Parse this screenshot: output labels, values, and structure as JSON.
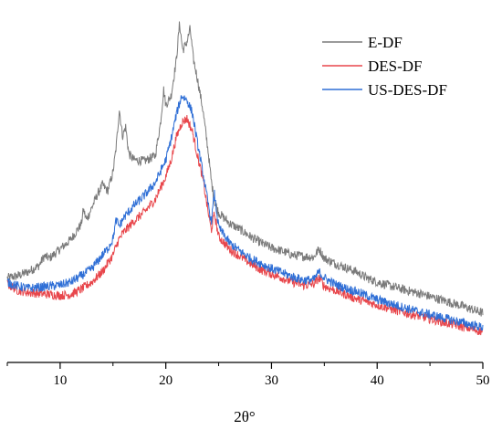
{
  "chart_data": {
    "type": "line",
    "title": "",
    "xlabel": "2θ°",
    "ylabel": "",
    "xlim": [
      5,
      50
    ],
    "x_ticks": [
      10,
      20,
      30,
      40,
      50
    ],
    "x_tick_labels": [
      "10",
      "20",
      "30",
      "40",
      "50"
    ],
    "y_axis_visible": false,
    "grid": false,
    "legend_position": "top-right",
    "series": [
      {
        "name": "E-DF",
        "color": "#7a7a7a",
        "x": [
          5,
          6,
          7,
          8,
          8.5,
          9,
          10,
          11,
          12,
          12.2,
          12.5,
          13,
          13.5,
          14,
          14.5,
          15,
          15.3,
          15.6,
          15.9,
          16.2,
          16.5,
          17,
          18,
          19,
          19.5,
          19.8,
          20,
          20.5,
          21,
          21.3,
          21.6,
          22,
          22.3,
          22.6,
          23,
          23.5,
          24,
          24.3,
          24.6,
          25,
          26,
          27,
          28,
          29,
          30,
          31,
          32,
          33,
          34,
          34.5,
          35,
          36,
          37,
          38,
          39,
          40,
          42,
          44,
          46,
          48,
          50
        ],
        "y": [
          4.2,
          4.4,
          4.8,
          5.4,
          6.3,
          6.1,
          7.0,
          7.9,
          9.4,
          10.8,
          9.8,
          11.0,
          12.2,
          13.2,
          12.6,
          14.4,
          16.8,
          20.5,
          17.9,
          18.8,
          16.2,
          15.6,
          15.5,
          16.0,
          19.2,
          22.4,
          20.9,
          21.8,
          25.3,
          28.8,
          26.2,
          27.0,
          28.3,
          25.4,
          23.4,
          20.5,
          16.5,
          13.6,
          11.6,
          10.5,
          9.5,
          8.9,
          8.2,
          7.6,
          7.1,
          6.8,
          6.4,
          6.3,
          6.2,
          7.0,
          6.1,
          5.6,
          5.2,
          4.8,
          4.2,
          3.8,
          3.2,
          2.7,
          2.1,
          1.5,
          0.8
        ]
      },
      {
        "name": "DES-DF",
        "color": "#e8464b",
        "x": [
          5,
          6,
          7,
          8,
          9,
          10,
          11,
          12,
          13,
          14,
          15,
          15.5,
          16,
          17,
          18,
          19,
          20,
          20.5,
          21,
          21.5,
          22,
          22.5,
          23,
          23.5,
          24,
          24.3,
          24.6,
          25,
          26,
          27,
          28,
          29,
          30,
          31,
          32,
          33,
          34,
          34.5,
          35,
          36,
          37,
          38,
          39,
          40,
          42,
          44,
          46,
          48,
          50
        ],
        "y": [
          3.6,
          3.0,
          2.8,
          2.7,
          2.6,
          2.5,
          2.6,
          3.1,
          3.8,
          4.8,
          6.4,
          7.8,
          8.6,
          9.7,
          10.6,
          11.8,
          14.0,
          15.6,
          17.8,
          19.2,
          19.6,
          18.4,
          16.0,
          13.8,
          10.6,
          8.8,
          10.4,
          8.2,
          7.0,
          6.3,
          5.6,
          5.0,
          4.6,
          4.2,
          3.8,
          3.5,
          3.6,
          4.2,
          3.4,
          3.0,
          2.6,
          2.2,
          1.9,
          1.6,
          1.0,
          0.5,
          0.0,
          -0.5,
          -1.0
        ]
      },
      {
        "name": "US-DES-DF",
        "color": "#2f6fd6",
        "x": [
          5,
          6,
          7,
          8,
          9,
          10,
          11,
          12,
          13,
          14,
          14.5,
          15,
          15.3,
          15.6,
          16,
          17,
          18,
          19,
          20,
          20.5,
          21,
          21.5,
          22,
          22.5,
          23,
          23.5,
          24,
          24.3,
          24.6,
          25,
          26,
          27,
          28,
          29,
          30,
          31,
          32,
          33,
          34,
          34.5,
          35,
          36,
          37,
          38,
          39,
          40,
          42,
          44,
          46,
          48,
          50
        ],
        "y": [
          3.8,
          3.4,
          3.2,
          3.3,
          3.4,
          3.5,
          3.8,
          4.4,
          5.1,
          6.4,
          7.0,
          8.0,
          9.8,
          9.2,
          10.0,
          11.2,
          12.2,
          13.4,
          15.6,
          17.6,
          20.0,
          21.8,
          21.4,
          20.2,
          17.2,
          14.4,
          11.4,
          9.6,
          12.3,
          9.1,
          7.6,
          6.8,
          6.1,
          5.6,
          5.1,
          4.7,
          4.3,
          4.0,
          4.0,
          4.8,
          4.2,
          3.6,
          3.2,
          2.9,
          2.5,
          2.1,
          1.5,
          0.9,
          0.4,
          -0.1,
          -0.6
        ]
      }
    ]
  }
}
